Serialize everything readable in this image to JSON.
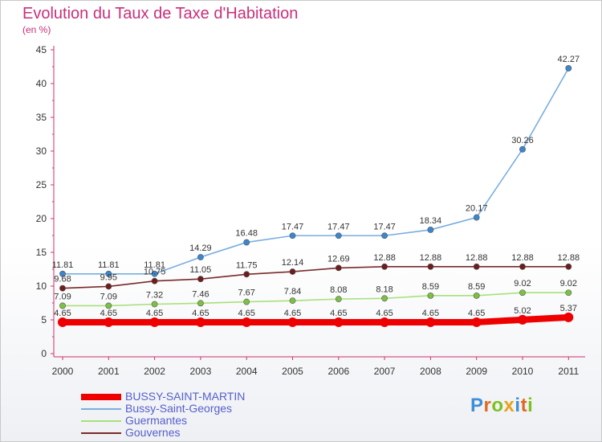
{
  "title": "Evolution du Taux de Taxe d'Habitation",
  "unit_label": "(en %)",
  "logo_text": "Proxiti",
  "chart_data": {
    "type": "line",
    "title": "Evolution du Taux de Taxe d'Habitation",
    "xlabel": "",
    "ylabel": "(en %)",
    "x": [
      "2000",
      "2001",
      "2002",
      "2003",
      "2004",
      "2005",
      "2006",
      "2007",
      "2008",
      "2009",
      "2010",
      "2011"
    ],
    "ylim": [
      0,
      45
    ],
    "yticks": [
      0,
      5,
      10,
      15,
      20,
      25,
      30,
      35,
      40,
      45
    ],
    "grid": false,
    "legend_position": "bottom",
    "series": [
      {
        "name": "BUSSY-SAINT-MARTIN",
        "color": "#ee0000",
        "marker_color": "#ee0000",
        "style": "thick",
        "values": [
          4.65,
          4.65,
          4.65,
          4.65,
          4.65,
          4.65,
          4.65,
          4.65,
          4.65,
          4.65,
          5.02,
          5.37
        ],
        "labels": [
          "4.65",
          "4.65",
          "4.65",
          "4.65",
          "4.65",
          "4.65",
          "4.65",
          "4.65",
          "4.65",
          "4.65",
          "5.02",
          "5.37"
        ]
      },
      {
        "name": "Bussy-Saint-Georges",
        "color": "#7aaede",
        "marker_color": "#3a86d0",
        "style": "thin",
        "values": [
          11.81,
          11.81,
          11.81,
          14.29,
          16.48,
          17.47,
          17.47,
          17.47,
          18.34,
          20.17,
          30.26,
          42.27
        ],
        "labels": [
          "11.81",
          "11.81",
          "11.81",
          "14.29",
          "16.48",
          "17.47",
          "17.47",
          "17.47",
          "18.34",
          "20.17",
          "30.26",
          "42.27"
        ]
      },
      {
        "name": "Guermantes",
        "color": "#a8e07a",
        "marker_color": "#7cc142",
        "style": "thin",
        "values": [
          7.09,
          7.09,
          7.32,
          7.46,
          7.67,
          7.84,
          8.08,
          8.18,
          8.59,
          8.59,
          9.02,
          9.02
        ],
        "labels": [
          "7.09",
          "7.09",
          "7.32",
          "7.46",
          "7.67",
          "7.84",
          "8.08",
          "8.18",
          "8.59",
          "8.59",
          "9.02",
          "9.02"
        ]
      },
      {
        "name": "Gouvernes",
        "color": "#7a2a2a",
        "marker_color": "#6e1c1c",
        "style": "thin",
        "values": [
          9.68,
          9.95,
          10.75,
          11.05,
          11.75,
          12.14,
          12.69,
          12.88,
          12.88,
          12.88,
          12.88,
          12.88
        ],
        "labels": [
          "9.68",
          "9.95",
          "10.75",
          "11.05",
          "11.75",
          "12.14",
          "12.69",
          "12.88",
          "12.88",
          "12.88",
          "12.88",
          "12.88"
        ]
      }
    ]
  }
}
